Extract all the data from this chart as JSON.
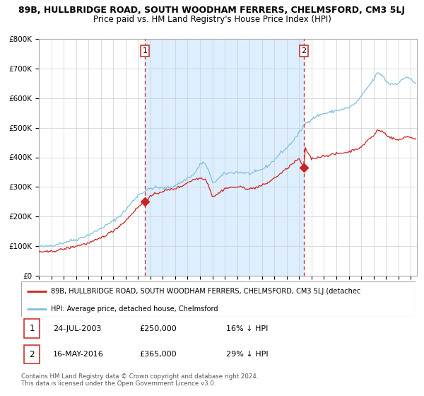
{
  "title1": "89B, HULLBRIDGE ROAD, SOUTH WOODHAM FERRERS, CHELMSFORD, CM3 5LJ",
  "title2": "Price paid vs. HM Land Registry's House Price Index (HPI)",
  "legend_line1": "89B, HULLBRIDGE ROAD, SOUTH WOODHAM FERRERS, CHELMSFORD, CM3 5LJ (detachec",
  "legend_line2": "HPI: Average price, detached house, Chelmsford",
  "annotation1_date": "24-JUL-2003",
  "annotation1_price": "£250,000",
  "annotation1_hpi": "16% ↓ HPI",
  "annotation2_date": "16-MAY-2016",
  "annotation2_price": "£365,000",
  "annotation2_hpi": "29% ↓ HPI",
  "footnote": "Contains HM Land Registry data © Crown copyright and database right 2024.\nThis data is licensed under the Open Government Licence v3.0.",
  "sale1_year": 2003.56,
  "sale1_price": 250000,
  "sale2_year": 2016.37,
  "sale2_price": 365000,
  "hpi_color": "#7fbfdf",
  "property_color": "#cc2222",
  "dashed_line_color": "#cc2222",
  "shading_color": "#ddeeff",
  "background_color": "#ffffff",
  "grid_color": "#cccccc",
  "ylim": [
    0,
    800000
  ],
  "xlim_start": 1995.0,
  "xlim_end": 2025.5,
  "title1_fontsize": 9.0,
  "title2_fontsize": 8.5
}
